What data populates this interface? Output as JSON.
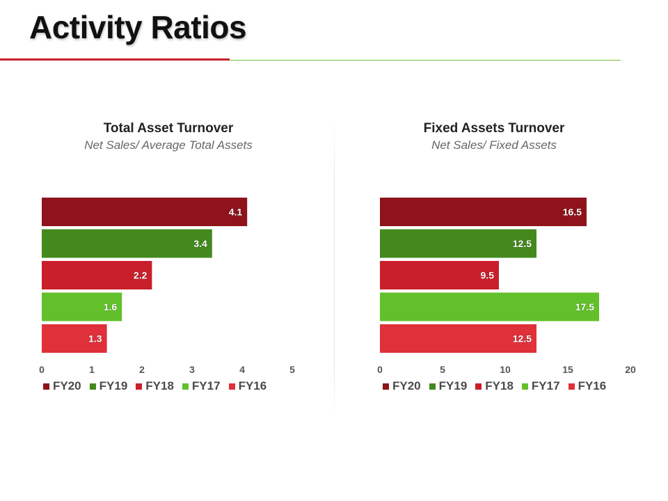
{
  "page": {
    "title": "Activity Ratios"
  },
  "chart_data": [
    {
      "type": "bar",
      "orientation": "horizontal",
      "title": "Total Asset Turnover",
      "subtitle": "Net Sales/ Average Total Assets",
      "categories": [
        "FY20",
        "FY19",
        "FY18",
        "FY17",
        "FY16"
      ],
      "values": [
        4.1,
        3.4,
        2.2,
        1.6,
        1.3
      ],
      "value_labels": [
        "4.1",
        "3.4",
        "2.2",
        "1.6",
        "1.3"
      ],
      "colors": [
        "#8e131b",
        "#43891e",
        "#c91f2a",
        "#62c02a",
        "#e0303a"
      ],
      "xlim": [
        0,
        5
      ],
      "xticks": [
        "0",
        "1",
        "2",
        "3",
        "4",
        "5"
      ],
      "grid": false,
      "legend": [
        "FY20",
        "FY19",
        "FY18",
        "FY17",
        "FY16"
      ],
      "legend_position": "bottom"
    },
    {
      "type": "bar",
      "orientation": "horizontal",
      "title": "Fixed Assets Turnover",
      "subtitle": "Net Sales/ Fixed Assets",
      "categories": [
        "FY20",
        "FY19",
        "FY18",
        "FY17",
        "FY16"
      ],
      "values": [
        16.5,
        12.5,
        9.5,
        17.5,
        12.5
      ],
      "value_labels": [
        "16.5",
        "12.5",
        "9.5",
        "17.5",
        "12.5"
      ],
      "colors": [
        "#8e131b",
        "#43891e",
        "#c91f2a",
        "#62c02a",
        "#e0303a"
      ],
      "xlim": [
        0,
        20
      ],
      "xticks": [
        "0",
        "5",
        "10",
        "15",
        "20"
      ],
      "grid": false,
      "legend": [
        "FY20",
        "FY19",
        "FY18",
        "FY17",
        "FY16"
      ],
      "legend_position": "bottom"
    }
  ]
}
